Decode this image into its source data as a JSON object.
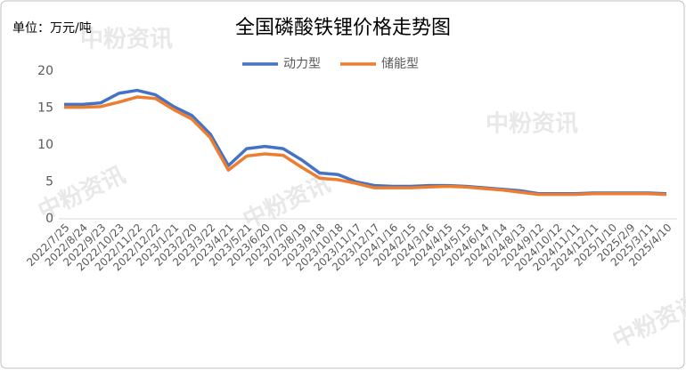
{
  "chart_data": {
    "type": "line",
    "title": "全国磷酸铁锂价格走势图",
    "unit_label": "单位：万元/吨",
    "watermark": "中粉资讯",
    "categories": [
      "2022/7/25",
      "2022/8/24",
      "2022/9/23",
      "2022/10/23",
      "2022/11/22",
      "2022/12/22",
      "2023/1/21",
      "2023/2/20",
      "2023/3/22",
      "2023/4/21",
      "2023/5/21",
      "2023/6/20",
      "2023/7/20",
      "2023/8/19",
      "2023/9/18",
      "2023/10/18",
      "2023/11/17",
      "2023/12/17",
      "2024/1/16",
      "2024/2/15",
      "2024/3/16",
      "2024/4/15",
      "2024/5/15",
      "2024/6/14",
      "2024/7/14",
      "2024/8/13",
      "2024/9/12",
      "2024/10/12",
      "2024/11/11",
      "2024/12/11",
      "2025/1/10",
      "2025/2/9",
      "2025/3/11",
      "2025/4/10"
    ],
    "series": [
      {
        "name": "动力型",
        "color": "#4472c4",
        "values": [
          15.5,
          15.5,
          15.7,
          17.0,
          17.4,
          16.8,
          15.2,
          14.0,
          11.5,
          7.2,
          9.5,
          9.8,
          9.5,
          8.0,
          6.2,
          6.0,
          5.0,
          4.5,
          4.4,
          4.4,
          4.5,
          4.5,
          4.4,
          4.2,
          4.0,
          3.8,
          3.4,
          3.4,
          3.4,
          3.5,
          3.5,
          3.5,
          3.5,
          3.4
        ]
      },
      {
        "name": "储能型",
        "color": "#ed7d31",
        "values": [
          15.1,
          15.1,
          15.2,
          15.8,
          16.5,
          16.3,
          14.8,
          13.5,
          11.0,
          6.6,
          8.5,
          8.8,
          8.6,
          7.0,
          5.5,
          5.3,
          4.8,
          4.2,
          4.2,
          4.2,
          4.3,
          4.4,
          4.3,
          4.1,
          3.9,
          3.6,
          3.3,
          3.3,
          3.3,
          3.4,
          3.4,
          3.4,
          3.4,
          3.3
        ]
      }
    ],
    "ylim": [
      0,
      20
    ],
    "yticks": [
      0,
      5,
      10,
      15,
      20
    ],
    "grid": false
  }
}
